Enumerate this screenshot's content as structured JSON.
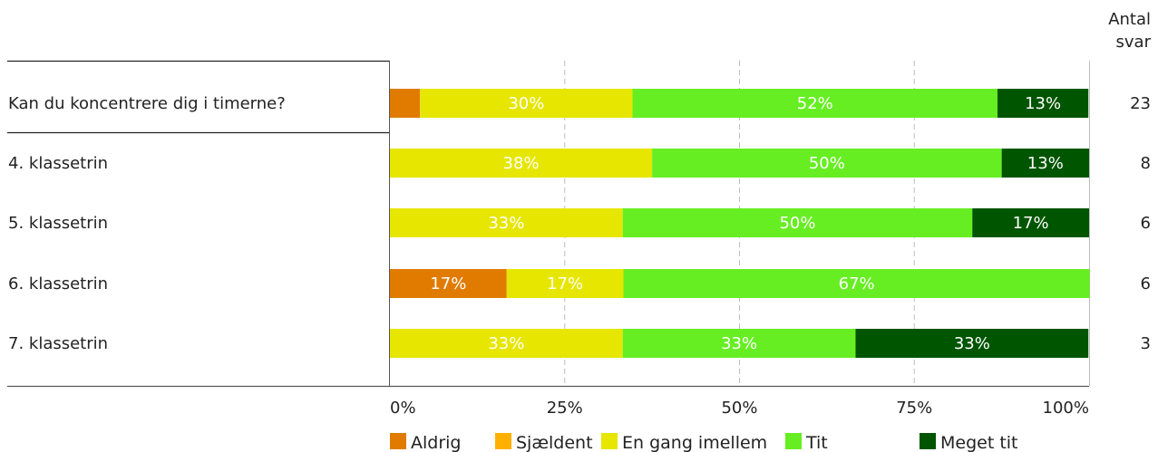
{
  "chart_data": {
    "type": "bar",
    "orientation": "horizontal",
    "stacked": true,
    "percent": true,
    "answers_header": [
      "Antal",
      "svar"
    ],
    "categories": [
      "Kan du koncentrere dig i timerne?",
      "4. klassetrin",
      "5. klassetrin",
      "6. klassetrin",
      "7. klassetrin"
    ],
    "answer_counts": [
      23,
      8,
      6,
      6,
      3
    ],
    "series": [
      {
        "name": "Aldrig",
        "color": "#e07b00",
        "values": [
          4.3,
          0,
          0,
          16.7,
          0
        ],
        "labels": [
          "",
          "",
          "",
          "17%",
          ""
        ]
      },
      {
        "name": "Sjældent",
        "color": "#ffb000",
        "values": [
          0,
          0,
          0,
          0,
          0
        ],
        "labels": [
          "",
          "",
          "",
          "",
          ""
        ]
      },
      {
        "name": "En gang imellem",
        "color": "#e6e600",
        "values": [
          30.4,
          37.5,
          33.3,
          16.7,
          33.3
        ],
        "labels": [
          "30%",
          "38%",
          "33%",
          "17%",
          "33%"
        ]
      },
      {
        "name": "Tit",
        "color": "#66ee22",
        "values": [
          52.2,
          50.0,
          50.0,
          66.7,
          33.3
        ],
        "labels": [
          "52%",
          "50%",
          "50%",
          "67%",
          "33%"
        ]
      },
      {
        "name": "Meget tit",
        "color": "#005500",
        "values": [
          13.0,
          12.5,
          16.7,
          0,
          33.3
        ],
        "labels": [
          "13%",
          "13%",
          "17%",
          "",
          "33%"
        ]
      }
    ],
    "xlim": [
      0,
      100
    ],
    "xticks": [
      "0%",
      "25%",
      "50%",
      "75%",
      "100%"
    ],
    "grid": true,
    "legend_position": "bottom"
  }
}
